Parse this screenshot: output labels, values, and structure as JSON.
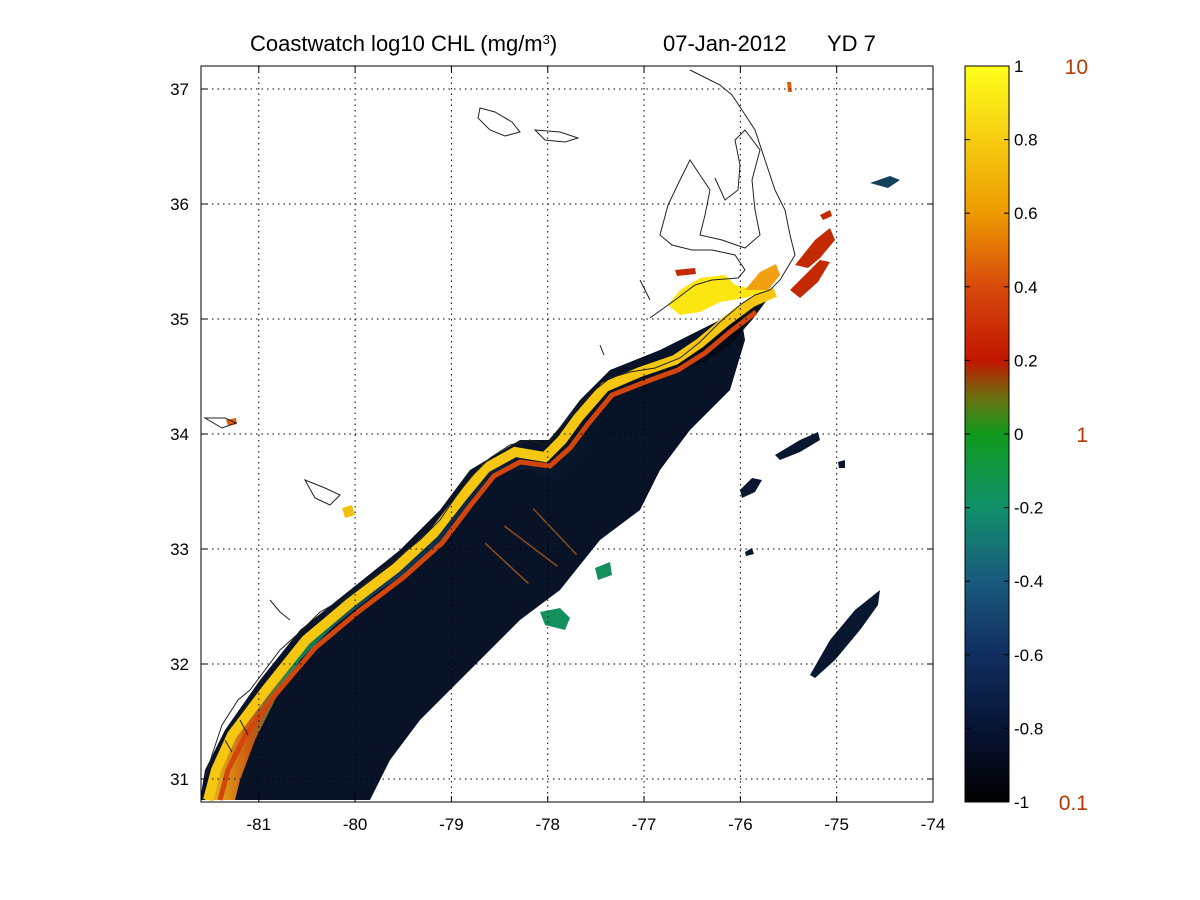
{
  "title": {
    "main": "Coastwatch  log10  CHL (mg/m",
    "superscript": "3",
    "close": ")",
    "date": "07-Jan-2012",
    "yearday": "YD 7"
  },
  "axes": {
    "x_ticks": [
      "-81",
      "-80",
      "-79",
      "-78",
      "-77",
      "-76",
      "-75",
      "-74"
    ],
    "y_ticks": [
      "37",
      "36",
      "35",
      "34",
      "33",
      "32",
      "31"
    ],
    "xlim": [
      -81.6,
      -74
    ],
    "ylim": [
      30.8,
      37.2
    ],
    "grid": true
  },
  "colorbar": {
    "ticks": [
      "1",
      "0.8",
      "0.6",
      "0.4",
      "0.2",
      "0",
      "-0.2",
      "-0.4",
      "-0.6",
      "-0.8",
      "-1"
    ],
    "concentration_labels": [
      "10",
      "1",
      "0.1"
    ],
    "range": [
      -1,
      1
    ],
    "colors": [
      "#000000",
      "#0a1e4a",
      "#1a4a7a",
      "#10906a",
      "#10a020",
      "#7a6a10",
      "#c81e00",
      "#e06010",
      "#f0a000",
      "#f8e010",
      "#ffff10"
    ],
    "concentration_color": "#b33a00"
  },
  "chart_data": {
    "type": "heatmap",
    "title": "Coastwatch  log10  CHL (mg/m3)   07-Jan-2012   YD 7",
    "variable": "log10 chlorophyll-a",
    "units": "mg/m3",
    "xlim": [
      -81.6,
      -74
    ],
    "ylim": [
      30.8,
      37.2
    ],
    "color_range": [
      -1,
      1
    ],
    "colorbar_ticks": [
      1,
      0.8,
      0.6,
      0.4,
      0.2,
      0,
      -0.2,
      -0.4,
      -0.6,
      -0.8,
      -1
    ],
    "grid": true,
    "transects": [
      {
        "start": [
          -78.65,
          33.05
        ],
        "end": [
          -78.2,
          32.7
        ]
      },
      {
        "start": [
          -78.45,
          33.2
        ],
        "end": [
          -77.9,
          32.85
        ]
      },
      {
        "start": [
          -78.15,
          33.35
        ],
        "end": [
          -77.7,
          32.95
        ]
      }
    ]
  }
}
